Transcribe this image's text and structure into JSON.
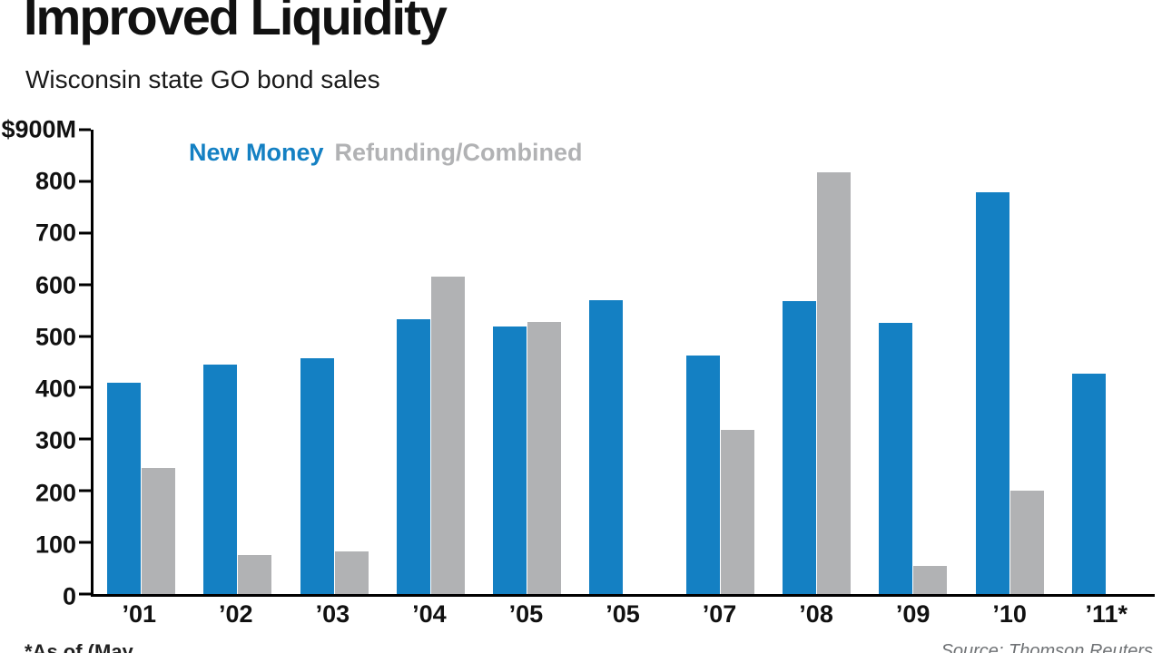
{
  "header": {
    "title": "Improved Liquidity",
    "subtitle": "Wisconsin state GO bond sales"
  },
  "legend": {
    "new_money_label": "New Money",
    "refunding_label": "Refunding/Combined"
  },
  "footer": {
    "footnote": "*As of (May",
    "source": "Source: Thomson Reuters"
  },
  "colors": {
    "new_money": "#1480c3",
    "refunding": "#b1b2b4",
    "axis": "#000000"
  },
  "chart_data": {
    "type": "bar",
    "title": "Improved Liquidity",
    "subtitle": "Wisconsin state GO bond sales",
    "categories": [
      "’01",
      "’02",
      "’03",
      "’04",
      "’05",
      "’05",
      "’07",
      "’08",
      "’09",
      "’10",
      "’11*"
    ],
    "series": [
      {
        "name": "New Money",
        "color": "#1480c3",
        "values": [
          410,
          445,
          457,
          533,
          519,
          570,
          462,
          567,
          526,
          778,
          427
        ]
      },
      {
        "name": "Refunding/Combined",
        "color": "#b1b2b4",
        "values": [
          245,
          75,
          82,
          615,
          527,
          null,
          318,
          818,
          55,
          200,
          null
        ]
      }
    ],
    "xlabel": "",
    "ylabel": "",
    "ylim": [
      0,
      900
    ],
    "y_ticks": [
      {
        "value": 900,
        "label": "$900M"
      },
      {
        "value": 800,
        "label": "800"
      },
      {
        "value": 700,
        "label": "700"
      },
      {
        "value": 600,
        "label": "600"
      },
      {
        "value": 500,
        "label": "500"
      },
      {
        "value": 400,
        "label": "400"
      },
      {
        "value": 300,
        "label": "300"
      },
      {
        "value": 200,
        "label": "200"
      },
      {
        "value": 100,
        "label": "100"
      },
      {
        "value": 0,
        "label": "0"
      }
    ],
    "grid": false,
    "legend_position": "top-left"
  }
}
